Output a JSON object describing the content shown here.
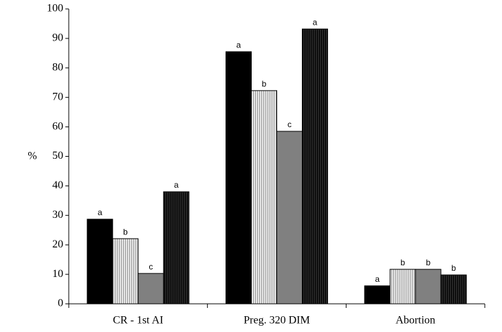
{
  "chart_data": {
    "type": "bar",
    "y_label": "%",
    "categories": [
      "CR - 1st AI",
      "Preg. 320 DIM",
      "Abortion"
    ],
    "series": [
      {
        "color": "#000000",
        "stripes": false,
        "values": [
          28.7,
          85.5,
          6.1
        ],
        "letters": [
          "a",
          "a",
          "a"
        ]
      },
      {
        "color": "#e6e6e6",
        "stripes": true,
        "values": [
          22.1,
          72.3,
          11.7
        ],
        "letters": [
          "b",
          "b",
          "b"
        ]
      },
      {
        "color": "#808080",
        "stripes": false,
        "values": [
          10.3,
          58.5,
          11.7
        ],
        "letters": [
          "c",
          "c",
          "b"
        ]
      },
      {
        "color": "#262626",
        "stripes": true,
        "values": [
          38,
          93.2,
          9.8
        ],
        "letters": [
          "a",
          "a",
          "b"
        ]
      }
    ],
    "ylim": [
      0,
      100
    ],
    "yticks": [
      0,
      10,
      20,
      30,
      40,
      50,
      60,
      70,
      80,
      90,
      100
    ]
  }
}
